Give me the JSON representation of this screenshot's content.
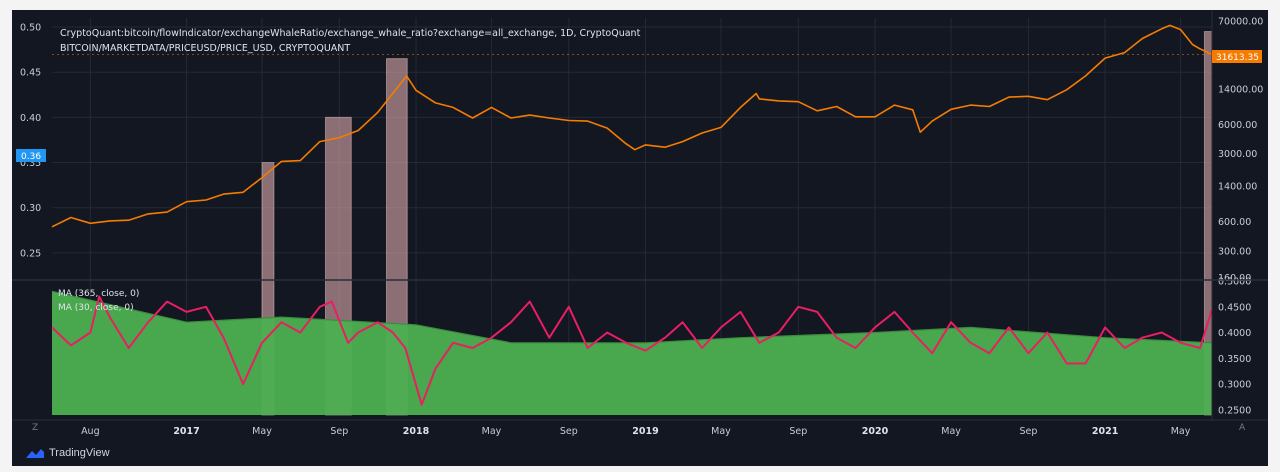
{
  "header": {
    "line1": "CryptoQuant:bitcoin/flowIndicator/exchangeWhaleRatio/exchange_whale_ratio?exchange=all_exchange, 1D, CryptoQuant",
    "line2": "BITCOIN/MARKETDATA/PRICEUSD/PRICE_USD, CRYPTOQUANT"
  },
  "brand": {
    "name": "TradingView"
  },
  "corner": {
    "left": "Z",
    "right": "A"
  },
  "colors": {
    "background": "#131722",
    "price": "#f57c00",
    "ratio_ma30": "#e91e63",
    "ratio_ma365": "#4caf50",
    "highlight": "#d7a6a6",
    "badge_left": "#2196f3",
    "badge_right": "#f57c00"
  },
  "chart_data": {
    "type": "line",
    "x_ticks": [
      "Aug",
      "2017",
      "May",
      "Sep",
      "2018",
      "May",
      "Sep",
      "2019",
      "May",
      "Sep",
      "2020",
      "May",
      "Sep",
      "2021",
      "May"
    ],
    "bold_ticks": [
      "2017",
      "2018",
      "2019",
      "2020",
      "2021"
    ],
    "x_range": [
      "2016-06-01",
      "2021-06-20"
    ],
    "upper_left_axis": {
      "ticks": [
        "0.50",
        "0.45",
        "0.40",
        "0.35",
        "0.30",
        "0.25"
      ],
      "range": [
        0.22,
        0.51
      ],
      "marker": "0.36"
    },
    "upper_right_axis": {
      "scale": "log",
      "ticks": [
        "70000.00",
        "14000.00",
        "6000.00",
        "3000.00",
        "1400.00",
        "600.00",
        "300.00",
        "160.00"
      ],
      "last_price": "31613.35"
    },
    "lower_right_axis": {
      "ticks": [
        "0.5000",
        "0.4500",
        "0.4000",
        "0.3500",
        "0.3000",
        "0.2500"
      ],
      "range": [
        0.24,
        0.5
      ]
    },
    "legend": [
      "MA (365, close, 0)",
      "MA (30, close, 0)"
    ],
    "series": [
      {
        "name": "BITCOIN/MARKETDATA/PRICEUSD/PRICE_USD",
        "x": [
          "2016-06-01",
          "2016-07-01",
          "2016-08-01",
          "2016-09-01",
          "2016-10-01",
          "2016-11-01",
          "2016-12-01",
          "2017-01-01",
          "2017-02-01",
          "2017-03-01",
          "2017-04-01",
          "2017-05-01",
          "2017-06-01",
          "2017-07-01",
          "2017-08-01",
          "2017-09-01",
          "2017-10-01",
          "2017-11-01",
          "2017-12-01",
          "2017-12-17",
          "2018-01-01",
          "2018-02-01",
          "2018-03-01",
          "2018-04-01",
          "2018-05-01",
          "2018-06-01",
          "2018-07-01",
          "2018-08-01",
          "2018-09-01",
          "2018-10-01",
          "2018-11-01",
          "2018-12-01",
          "2018-12-15",
          "2019-01-01",
          "2019-02-01",
          "2019-03-01",
          "2019-04-01",
          "2019-05-01",
          "2019-06-01",
          "2019-06-26",
          "2019-07-01",
          "2019-08-01",
          "2019-09-01",
          "2019-10-01",
          "2019-11-01",
          "2019-12-01",
          "2020-01-01",
          "2020-02-01",
          "2020-03-01",
          "2020-03-13",
          "2020-04-01",
          "2020-05-01",
          "2020-06-01",
          "2020-07-01",
          "2020-08-01",
          "2020-09-01",
          "2020-10-01",
          "2020-11-01",
          "2020-12-01",
          "2021-01-01",
          "2021-02-01",
          "2021-03-01",
          "2021-04-01",
          "2021-04-14",
          "2021-05-01",
          "2021-05-20",
          "2021-06-01",
          "2021-06-20"
        ],
        "values": [
          530,
          660,
          575,
          610,
          620,
          720,
          750,
          960,
          1000,
          1150,
          1200,
          1700,
          2500,
          2550,
          4000,
          4400,
          5200,
          8000,
          14000,
          19000,
          13500,
          10000,
          9000,
          7000,
          9000,
          7000,
          7500,
          7000,
          6600,
          6500,
          5500,
          3800,
          3300,
          3700,
          3500,
          4000,
          4900,
          5600,
          9000,
          12500,
          11000,
          10500,
          10300,
          8300,
          9200,
          7200,
          7200,
          9500,
          8500,
          5000,
          6500,
          8600,
          9500,
          9200,
          11500,
          11700,
          10800,
          13700,
          19000,
          29000,
          33000,
          46000,
          58000,
          63000,
          57000,
          40000,
          36000,
          31613
        ]
      },
      {
        "name": "MA (30, close, 0)",
        "x": [
          "2016-06-01",
          "2016-07-01",
          "2016-08-01",
          "2016-08-15",
          "2016-09-01",
          "2016-10-01",
          "2016-11-01",
          "2016-12-01",
          "2017-01-01",
          "2017-02-01",
          "2017-03-01",
          "2017-04-01",
          "2017-05-01",
          "2017-06-01",
          "2017-07-01",
          "2017-08-01",
          "2017-08-20",
          "2017-09-15",
          "2017-10-01",
          "2017-11-01",
          "2017-11-25",
          "2017-12-15",
          "2018-01-10",
          "2018-02-01",
          "2018-03-01",
          "2018-04-01",
          "2018-05-01",
          "2018-06-01",
          "2018-07-01",
          "2018-08-01",
          "2018-09-01",
          "2018-10-01",
          "2018-11-01",
          "2018-12-01",
          "2019-01-01",
          "2019-02-01",
          "2019-03-01",
          "2019-04-01",
          "2019-05-01",
          "2019-06-01",
          "2019-07-01",
          "2019-08-01",
          "2019-09-01",
          "2019-10-01",
          "2019-11-01",
          "2019-12-01",
          "2020-01-01",
          "2020-02-01",
          "2020-03-01",
          "2020-04-01",
          "2020-05-01",
          "2020-06-01",
          "2020-07-01",
          "2020-08-01",
          "2020-09-01",
          "2020-10-01",
          "2020-11-01",
          "2020-12-01",
          "2021-01-01",
          "2021-02-01",
          "2021-03-01",
          "2021-04-01",
          "2021-05-01",
          "2021-06-01",
          "2021-06-20"
        ],
        "values": [
          0.41,
          0.375,
          0.4,
          0.47,
          0.43,
          0.37,
          0.42,
          0.46,
          0.44,
          0.45,
          0.39,
          0.3,
          0.38,
          0.42,
          0.4,
          0.45,
          0.46,
          0.38,
          0.4,
          0.42,
          0.4,
          0.37,
          0.26,
          0.33,
          0.38,
          0.37,
          0.39,
          0.42,
          0.46,
          0.39,
          0.45,
          0.37,
          0.4,
          0.38,
          0.365,
          0.39,
          0.42,
          0.37,
          0.41,
          0.44,
          0.38,
          0.4,
          0.45,
          0.44,
          0.39,
          0.37,
          0.41,
          0.44,
          0.4,
          0.36,
          0.42,
          0.38,
          0.36,
          0.41,
          0.36,
          0.4,
          0.34,
          0.34,
          0.41,
          0.37,
          0.39,
          0.4,
          0.38,
          0.37,
          0.445
        ]
      },
      {
        "name": "MA (365, close, 0)",
        "x": [
          "2016-06-01",
          "2017-01-01",
          "2017-06-01",
          "2018-01-01",
          "2018-06-01",
          "2019-01-01",
          "2019-06-01",
          "2020-01-01",
          "2020-06-01",
          "2021-01-01",
          "2021-06-20"
        ],
        "values": [
          0.48,
          0.42,
          0.43,
          0.415,
          0.38,
          0.38,
          0.39,
          0.4,
          0.41,
          0.39,
          0.38
        ]
      }
    ],
    "highlights": [
      {
        "x0": "2017-05-01",
        "x1": "2017-05-20",
        "top": 0.35
      },
      {
        "x0": "2017-08-10",
        "x1": "2017-09-20",
        "top": 0.4
      },
      {
        "x0": "2017-11-15",
        "x1": "2017-12-18",
        "top": 0.465
      },
      {
        "x0": "2021-06-08",
        "x1": "2021-06-20",
        "top": 0.495
      }
    ]
  }
}
